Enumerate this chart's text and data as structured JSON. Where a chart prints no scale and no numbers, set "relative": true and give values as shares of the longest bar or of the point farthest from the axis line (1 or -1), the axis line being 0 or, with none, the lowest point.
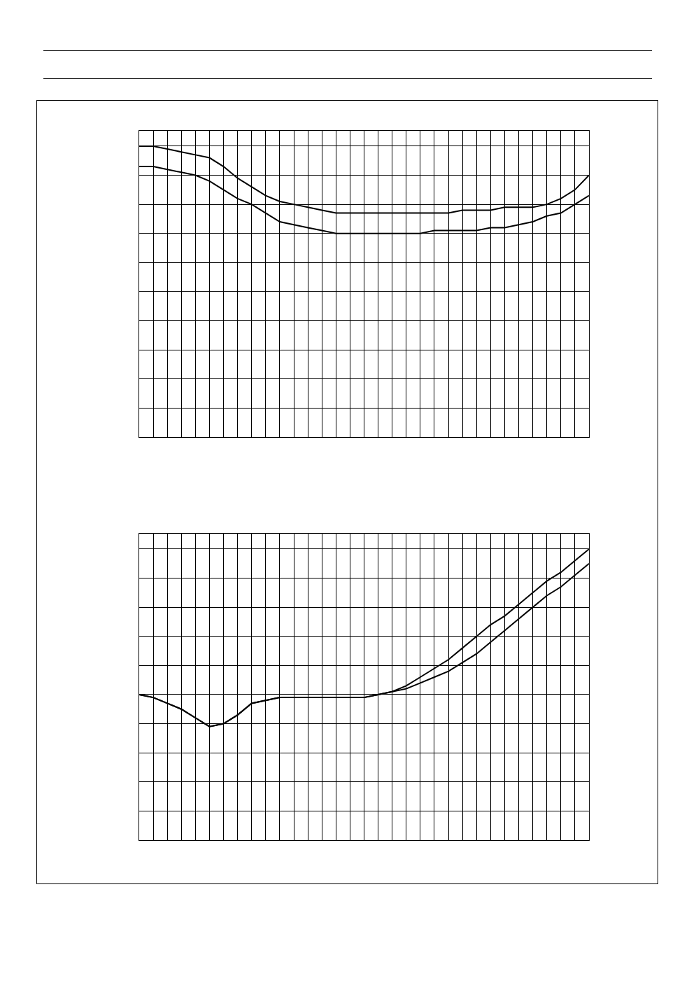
{
  "chart_data": [
    {
      "type": "line",
      "relative": true,
      "grid": true,
      "categories": [
        null,
        null,
        null,
        null,
        null,
        null,
        null,
        null,
        null,
        null,
        null,
        null,
        null,
        null,
        null,
        null,
        null,
        null,
        null,
        null,
        null,
        null,
        null,
        null,
        null,
        null,
        null,
        null,
        null,
        null,
        null,
        null,
        null
      ],
      "series": [
        {
          "color": "#000000",
          "values": [
            1.0,
            1.0,
            0.99,
            0.98,
            0.97,
            0.96,
            0.93,
            0.89,
            0.86,
            0.83,
            0.81,
            0.8,
            0.79,
            0.78,
            0.77,
            0.77,
            0.77,
            0.77,
            0.77,
            0.77,
            0.77,
            0.77,
            0.77,
            0.78,
            0.78,
            0.78,
            0.79,
            0.79,
            0.79,
            0.8,
            0.82,
            0.85,
            0.9
          ]
        },
        {
          "color": "#000000",
          "values": [
            0.93,
            0.93,
            0.92,
            0.91,
            0.9,
            0.88,
            0.85,
            0.82,
            0.8,
            0.77,
            0.74,
            0.73,
            0.72,
            0.71,
            0.7,
            0.7,
            0.7,
            0.7,
            0.7,
            0.7,
            0.7,
            0.71,
            0.71,
            0.71,
            0.71,
            0.72,
            0.72,
            0.73,
            0.74,
            0.76,
            0.77,
            0.8,
            0.83
          ]
        }
      ]
    },
    {
      "type": "line",
      "relative": true,
      "grid": true,
      "categories": [
        null,
        null,
        null,
        null,
        null,
        null,
        null,
        null,
        null,
        null,
        null,
        null,
        null,
        null,
        null,
        null,
        null,
        null,
        null,
        null,
        null,
        null,
        null,
        null,
        null,
        null,
        null,
        null,
        null,
        null,
        null,
        null,
        null
      ],
      "series": [
        {
          "color": "#000000",
          "values": [
            0.5,
            0.49,
            0.47,
            0.45,
            0.42,
            0.39,
            0.4,
            0.43,
            0.47,
            0.48,
            0.49,
            0.49,
            0.49,
            0.49,
            0.49,
            0.49,
            0.49,
            0.5,
            0.51,
            0.53,
            0.56,
            0.59,
            0.62,
            0.66,
            0.7,
            0.74,
            0.77,
            0.81,
            0.85,
            0.89,
            0.92,
            0.96,
            1.0
          ]
        },
        {
          "color": "#000000",
          "values": [
            0.5,
            0.49,
            0.47,
            0.45,
            0.42,
            0.39,
            0.4,
            0.43,
            0.47,
            0.48,
            0.49,
            0.49,
            0.49,
            0.49,
            0.49,
            0.49,
            0.49,
            0.5,
            0.51,
            0.52,
            0.54,
            0.56,
            0.58,
            0.61,
            0.64,
            0.68,
            0.72,
            0.76,
            0.8,
            0.84,
            0.87,
            0.91,
            0.95
          ]
        }
      ]
    }
  ]
}
